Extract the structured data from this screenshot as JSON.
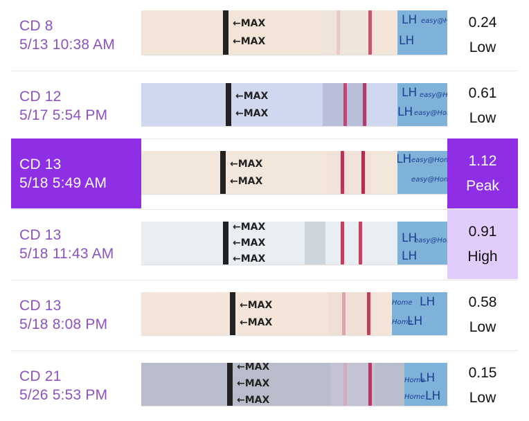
{
  "rows": [
    {
      "cd": "CD 8",
      "datetime": "5/13 10:38 AM",
      "ratio": "0.24",
      "level": "Low",
      "strip_max": [
        "←MAX",
        "←MAX"
      ],
      "strip_handle": [
        "LH",
        "easy@Home"
      ]
    },
    {
      "cd": "CD 12",
      "datetime": "5/17 5:54 PM",
      "ratio": "0.61",
      "level": "Low",
      "strip_max": [
        "←MAX",
        "←MAX"
      ],
      "strip_handle": [
        "LH",
        "easy@Home"
      ]
    },
    {
      "cd": "CD 13",
      "datetime": "5/18 5:49 AM",
      "ratio": "1.12",
      "level": "Peak",
      "strip_max": [
        "←MAX",
        "←MAX"
      ],
      "strip_handle": [
        "LH",
        "easy@Home"
      ]
    },
    {
      "cd": "CD 13",
      "datetime": "5/18 11:43 AM",
      "ratio": "0.91",
      "level": "High",
      "strip_max": [
        "←MAX",
        "←MAX",
        "←MAX"
      ],
      "strip_handle": [
        "LH",
        "easy@Home"
      ]
    },
    {
      "cd": "CD 13",
      "datetime": "5/18 8:08 PM",
      "ratio": "0.58",
      "level": "Low",
      "strip_max": [
        "←MAX",
        "←MAX"
      ],
      "strip_handle": [
        "LH",
        "Home"
      ]
    },
    {
      "cd": "CD 21",
      "datetime": "5/26 5:53 PM",
      "ratio": "0.15",
      "level": "Low",
      "strip_max": [
        "←MAX",
        "←MAX",
        "←MAX"
      ],
      "strip_handle": [
        "LH",
        "Home"
      ]
    }
  ],
  "colors": {
    "accent": "#8e2fe6",
    "accent_light": "#e2ccfb",
    "date_text": "#8b53bd",
    "test_line": "#b23a5a"
  }
}
